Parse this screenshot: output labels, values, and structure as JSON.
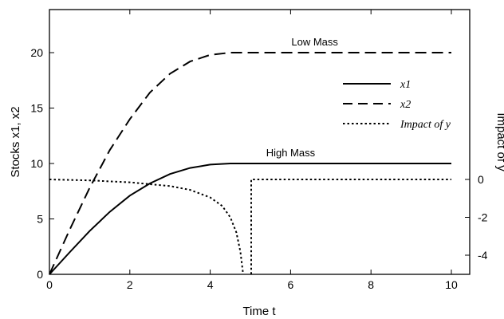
{
  "chart_data": {
    "type": "line",
    "xlabel": "Time   t",
    "ylabel": "Stocks   x1, x2",
    "y2label": "Impact of   y",
    "xlim": [
      0,
      10.5
    ],
    "ylim": [
      0,
      24
    ],
    "y2lim": [
      -5,
      0.5
    ],
    "xticks": [
      "0",
      "2",
      "4",
      "6",
      "8",
      "10"
    ],
    "yticks": [
      "0",
      "5",
      "10",
      "15",
      "20"
    ],
    "y2ticks": [
      "0",
      "-2",
      "-4"
    ],
    "grid": false,
    "legend_position": "upper-right",
    "annotations": [
      {
        "text": "Low Mass",
        "x": 6.6,
        "y": 21
      },
      {
        "text": "High Mass",
        "x": 6.0,
        "y": 11
      }
    ],
    "series": [
      {
        "name": "x1",
        "style": "solid",
        "axis": "left",
        "x": [
          0,
          0.5,
          1,
          1.5,
          2,
          2.5,
          3,
          3.5,
          4,
          4.5,
          4.8,
          5,
          6,
          7,
          8,
          9,
          10
        ],
        "y": [
          0,
          1.98,
          3.91,
          5.63,
          7.1,
          8.2,
          9.05,
          9.6,
          9.9,
          10,
          10,
          10,
          10,
          10,
          10,
          10,
          10
        ]
      },
      {
        "name": "x2",
        "style": "dashed",
        "axis": "left",
        "x": [
          0,
          0.5,
          1,
          1.5,
          2,
          2.5,
          3,
          3.5,
          4,
          4.5,
          4.8,
          5,
          6,
          7,
          8,
          9,
          10
        ],
        "y": [
          0,
          4.0,
          7.8,
          11.2,
          14.0,
          16.4,
          18.1,
          19.2,
          19.8,
          20,
          20,
          20,
          20,
          20,
          20,
          20,
          20
        ]
      },
      {
        "name": "Impact of y",
        "style": "dotted",
        "axis": "right",
        "x": [
          0,
          1,
          2,
          3,
          3.5,
          4,
          4.3,
          4.5,
          4.65,
          4.75,
          4.82,
          4.82,
          5.02,
          5.02,
          6,
          8,
          10
        ],
        "y": [
          0,
          -0.05,
          -0.15,
          -0.35,
          -0.55,
          -0.95,
          -1.4,
          -2.0,
          -2.8,
          -3.8,
          -5,
          null,
          -5,
          0,
          0,
          0,
          0
        ]
      }
    ]
  }
}
